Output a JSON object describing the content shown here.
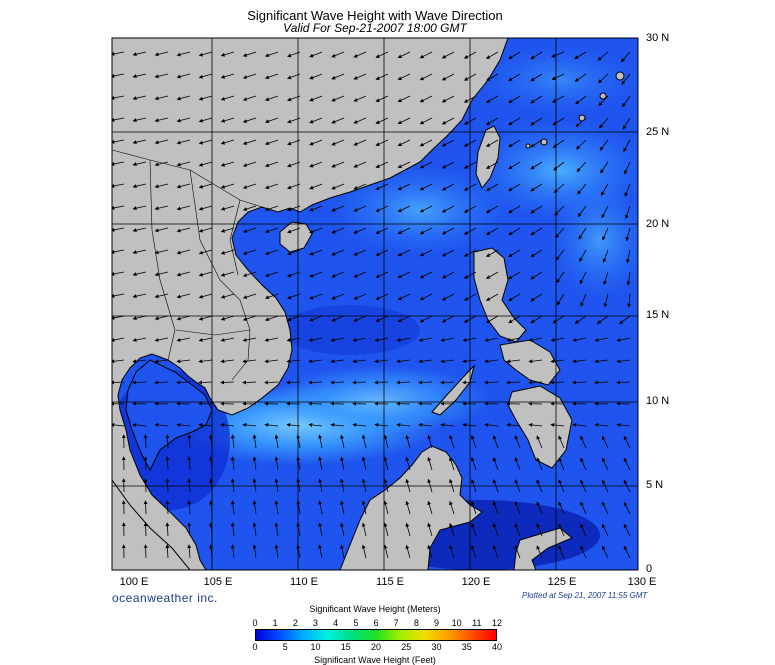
{
  "header": {
    "title": "Significant Wave Height with Wave Direction",
    "subtitle": "Valid For Sep-21-2007 18:00 GMT"
  },
  "map": {
    "lon_labels": [
      "100 E",
      "105 E",
      "110 E",
      "115 E",
      "120 E",
      "125 E",
      "130 E"
    ],
    "lat_labels": [
      "30 N",
      "25 N",
      "20 N",
      "15 N",
      "10 N",
      "5 N",
      "0"
    ],
    "land_color": "#c0c0c0",
    "grid_color": "#000000"
  },
  "footer": {
    "brand": "oceanweather inc.",
    "plotted": "Plotted at Sep 21, 2007 11:55 GMT"
  },
  "legend": {
    "title_meters": "Significant Wave Height (Meters)",
    "title_feet": "Significant Wave Height (Feet)",
    "meter_ticks": [
      "0",
      "1",
      "2",
      "3",
      "4",
      "5",
      "6",
      "7",
      "8",
      "9",
      "10",
      "11",
      "12"
    ],
    "feet_ticks": [
      "0",
      "5",
      "10",
      "15",
      "20",
      "25",
      "30",
      "35",
      "40"
    ],
    "colors": [
      "#0000dd",
      "#0050ff",
      "#00b0ff",
      "#00f0e0",
      "#00e080",
      "#20e020",
      "#a0f000",
      "#f0e000",
      "#ffa000",
      "#ff5000",
      "#ff0000"
    ]
  }
}
